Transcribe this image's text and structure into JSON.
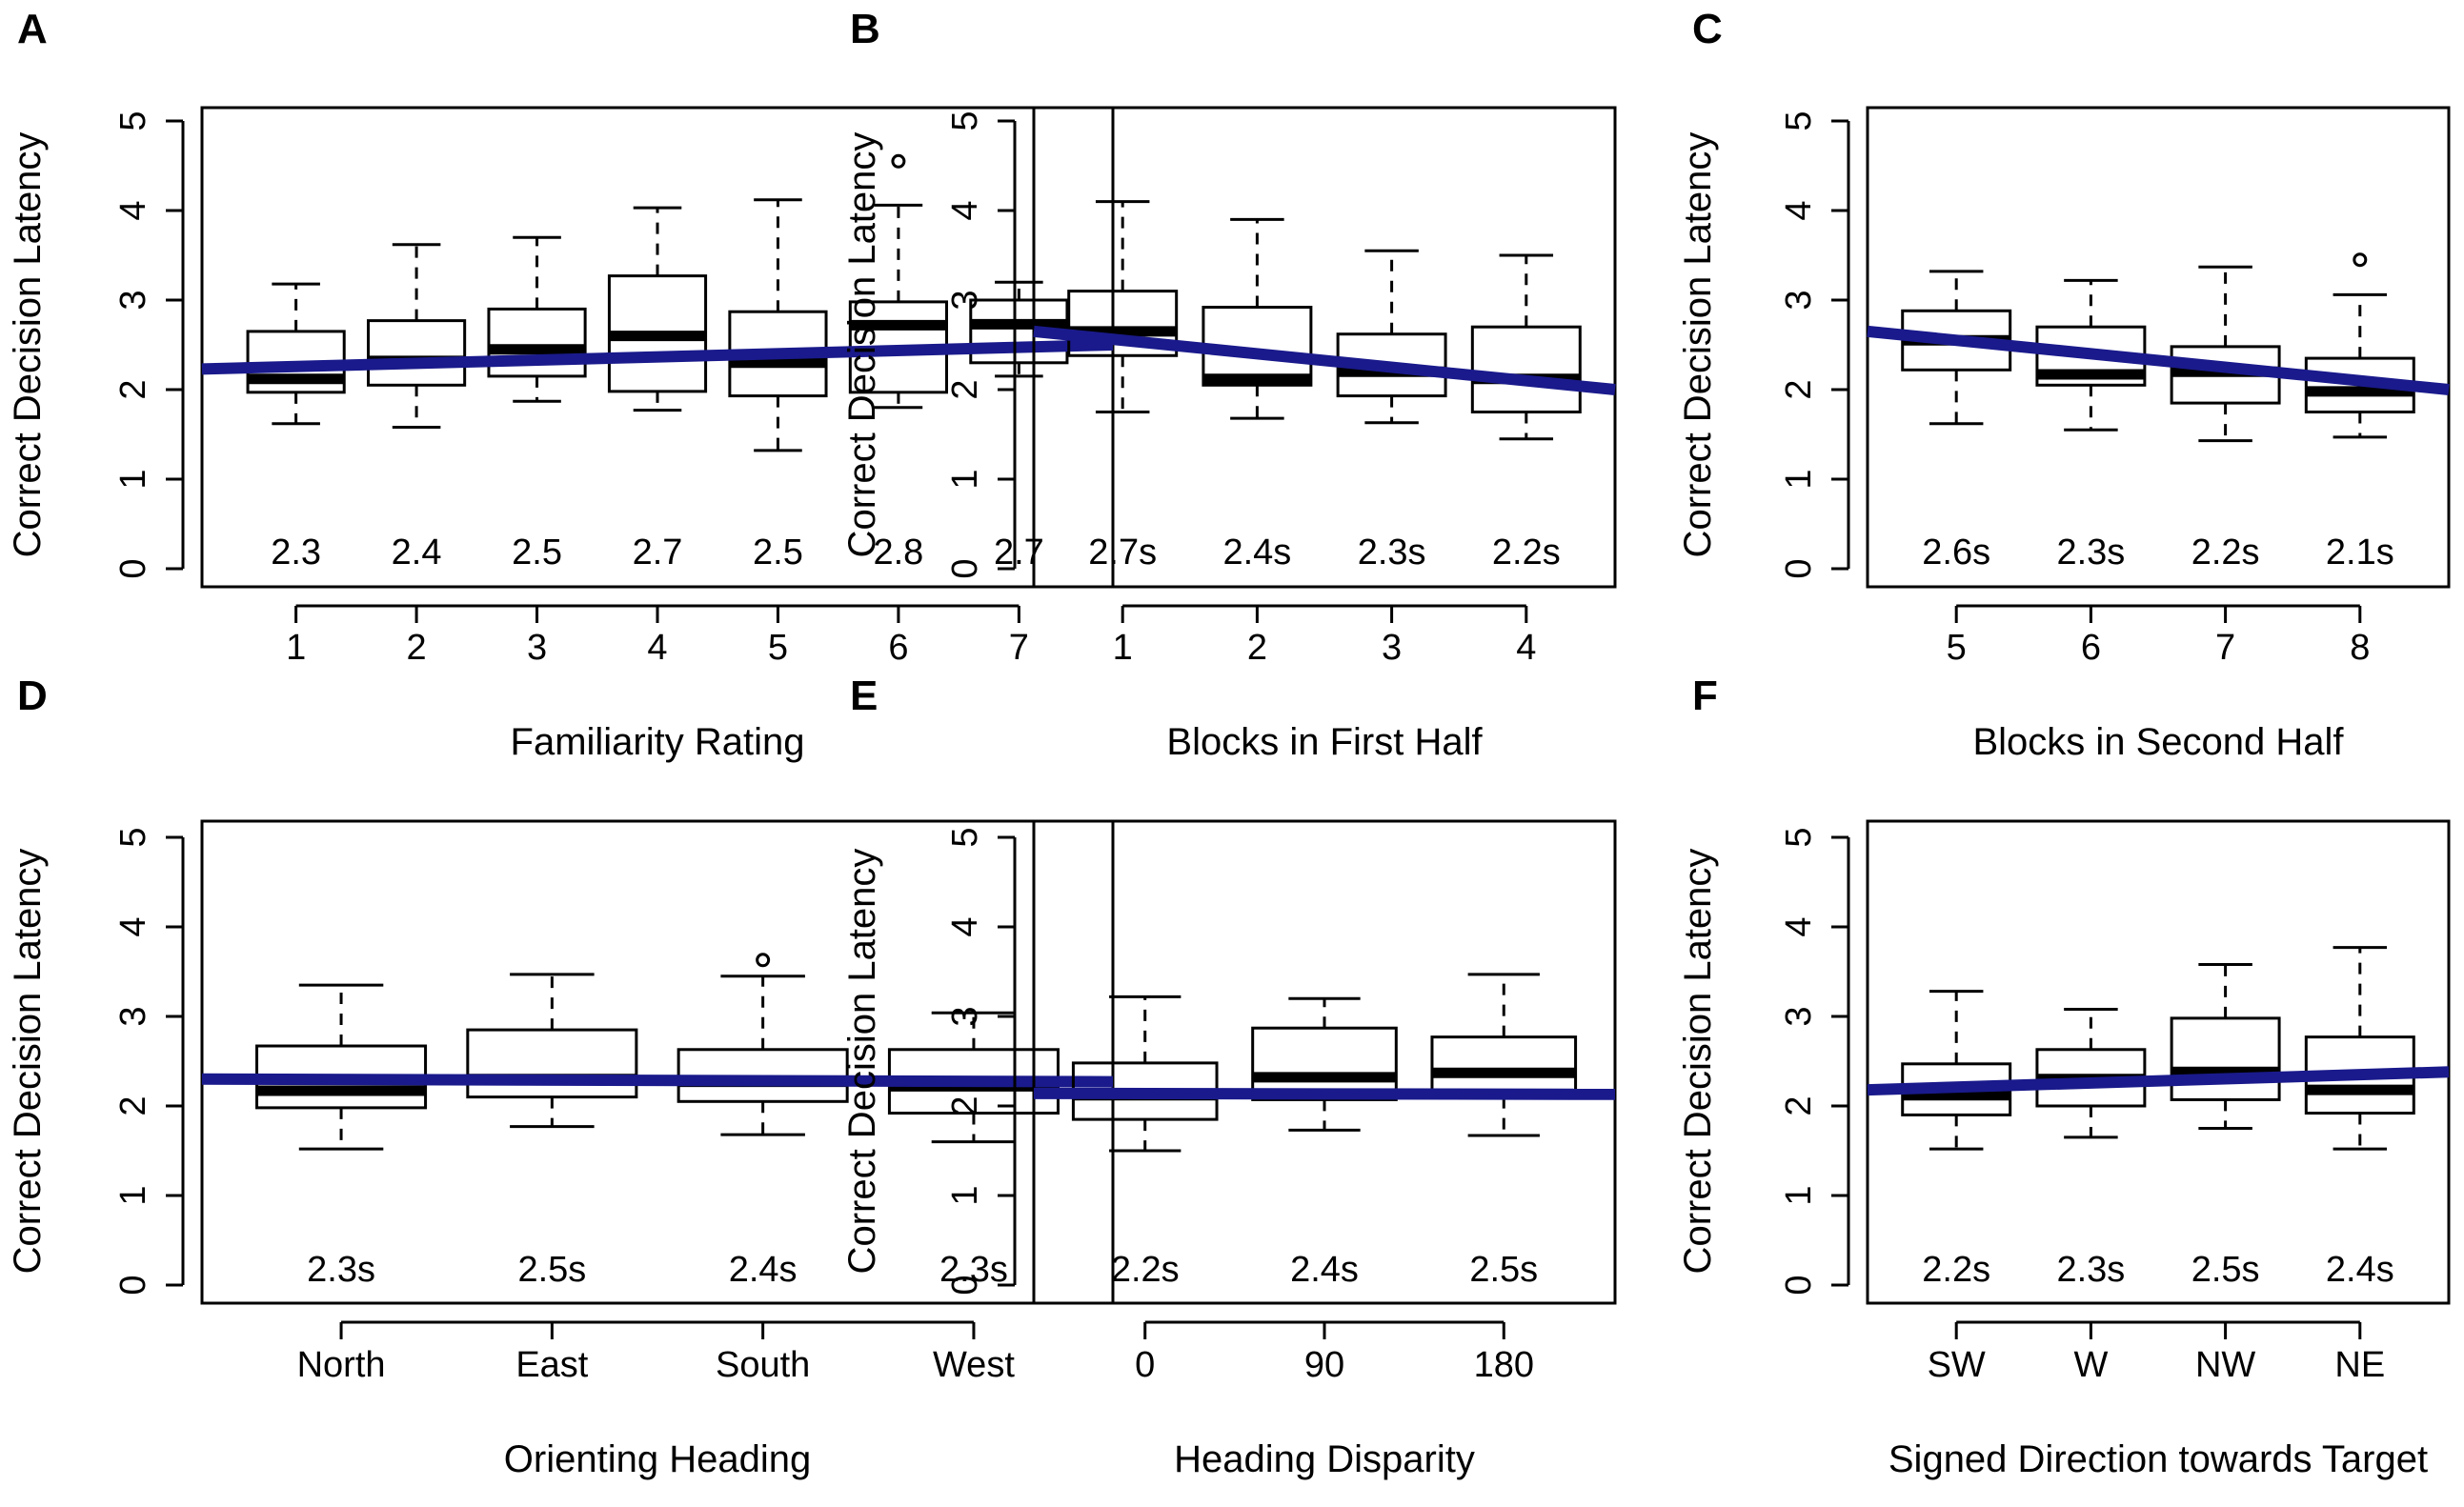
{
  "chart_data": [
    {
      "panel": "A",
      "type": "box",
      "xlabel": "Familiarity Rating",
      "ylabel": "Correct Decision Latency",
      "ylim": [
        0,
        5
      ],
      "yticks": [
        "0",
        "1",
        "2",
        "3",
        "4",
        "5"
      ],
      "categories": [
        "1",
        "2",
        "3",
        "4",
        "5",
        "6",
        "7"
      ],
      "value_labels": [
        "2.3",
        "2.4",
        "2.5",
        "2.7",
        "2.5",
        "2.8",
        "2.7"
      ],
      "boxes": [
        {
          "lo": 1.62,
          "q1": 1.97,
          "med": 2.12,
          "q3": 2.65,
          "hi": 3.18,
          "out": []
        },
        {
          "lo": 1.58,
          "q1": 2.05,
          "med": 2.32,
          "q3": 2.77,
          "hi": 3.62,
          "out": []
        },
        {
          "lo": 1.87,
          "q1": 2.15,
          "med": 2.45,
          "q3": 2.9,
          "hi": 3.7,
          "out": []
        },
        {
          "lo": 1.77,
          "q1": 1.98,
          "med": 2.6,
          "q3": 3.27,
          "hi": 4.03,
          "out": []
        },
        {
          "lo": 1.32,
          "q1": 1.93,
          "med": 2.3,
          "q3": 2.87,
          "hi": 4.12,
          "out": []
        },
        {
          "lo": 1.8,
          "q1": 1.97,
          "med": 2.72,
          "q3": 2.98,
          "hi": 4.06,
          "out": [
            4.55
          ]
        },
        {
          "lo": 2.15,
          "q1": 2.3,
          "med": 2.73,
          "q3": 3.0,
          "hi": 3.2,
          "out": []
        }
      ],
      "trend": {
        "start": 2.23,
        "end": 2.5
      }
    },
    {
      "panel": "B",
      "type": "box",
      "xlabel": "Blocks in First Half",
      "ylabel": "Correct Decision Latency",
      "ylim": [
        0,
        5
      ],
      "yticks": [
        "0",
        "1",
        "2",
        "3",
        "4",
        "5"
      ],
      "categories": [
        "1",
        "2",
        "3",
        "4"
      ],
      "value_labels": [
        "2.7s",
        "2.4s",
        "2.3s",
        "2.2s"
      ],
      "boxes": [
        {
          "lo": 1.75,
          "q1": 2.38,
          "med": 2.65,
          "q3": 3.1,
          "hi": 4.1,
          "out": []
        },
        {
          "lo": 1.68,
          "q1": 2.05,
          "med": 2.12,
          "q3": 2.92,
          "hi": 3.9,
          "out": []
        },
        {
          "lo": 1.63,
          "q1": 1.93,
          "med": 2.2,
          "q3": 2.62,
          "hi": 3.55,
          "out": []
        },
        {
          "lo": 1.45,
          "q1": 1.75,
          "med": 2.12,
          "q3": 2.7,
          "hi": 3.5,
          "out": []
        }
      ],
      "trend": {
        "start": 2.65,
        "end": 2.0
      }
    },
    {
      "panel": "C",
      "type": "box",
      "xlabel": "Blocks in Second Half",
      "ylabel": "Correct Decision Latency",
      "ylim": [
        0,
        5
      ],
      "yticks": [
        "0",
        "1",
        "2",
        "3",
        "4",
        "5"
      ],
      "categories": [
        "5",
        "6",
        "7",
        "8"
      ],
      "value_labels": [
        "2.6s",
        "2.3s",
        "2.2s",
        "2.1s"
      ],
      "boxes": [
        {
          "lo": 1.62,
          "q1": 2.22,
          "med": 2.55,
          "q3": 2.88,
          "hi": 3.32,
          "out": []
        },
        {
          "lo": 1.55,
          "q1": 2.05,
          "med": 2.17,
          "q3": 2.7,
          "hi": 3.22,
          "out": []
        },
        {
          "lo": 1.43,
          "q1": 1.85,
          "med": 2.2,
          "q3": 2.48,
          "hi": 3.37,
          "out": []
        },
        {
          "lo": 1.47,
          "q1": 1.75,
          "med": 1.98,
          "q3": 2.35,
          "hi": 3.06,
          "out": [
            3.45
          ]
        }
      ],
      "trend": {
        "start": 2.65,
        "end": 2.0
      }
    },
    {
      "panel": "D",
      "type": "box",
      "xlabel": "Orienting Heading",
      "ylabel": "Correct Decision Latency",
      "ylim": [
        0,
        5
      ],
      "yticks": [
        "0",
        "1",
        "2",
        "3",
        "4",
        "5"
      ],
      "categories": [
        "North",
        "East",
        "South",
        "West"
      ],
      "value_labels": [
        "2.3s",
        "2.5s",
        "2.4s",
        "2.3s"
      ],
      "boxes": [
        {
          "lo": 1.52,
          "q1": 1.98,
          "med": 2.17,
          "q3": 2.67,
          "hi": 3.35,
          "out": []
        },
        {
          "lo": 1.77,
          "q1": 2.1,
          "med": 2.3,
          "q3": 2.85,
          "hi": 3.47,
          "out": []
        },
        {
          "lo": 1.68,
          "q1": 2.05,
          "med": 2.27,
          "q3": 2.63,
          "hi": 3.45,
          "out": [
            3.63
          ]
        },
        {
          "lo": 1.6,
          "q1": 1.92,
          "med": 2.22,
          "q3": 2.63,
          "hi": 3.04,
          "out": []
        }
      ],
      "trend": {
        "start": 2.3,
        "end": 2.27
      }
    },
    {
      "panel": "E",
      "type": "box",
      "xlabel": "Heading Disparity",
      "ylabel": "Correct Decision Latency",
      "ylim": [
        0,
        5
      ],
      "yticks": [
        "0",
        "1",
        "2",
        "3",
        "4",
        "5"
      ],
      "categories": [
        "0",
        "90",
        "180"
      ],
      "value_labels": [
        "2.2s",
        "2.4s",
        "2.5s"
      ],
      "boxes": [
        {
          "lo": 1.5,
          "q1": 1.85,
          "med": 2.12,
          "q3": 2.48,
          "hi": 3.22,
          "out": []
        },
        {
          "lo": 1.73,
          "q1": 2.07,
          "med": 2.32,
          "q3": 2.87,
          "hi": 3.2,
          "out": []
        },
        {
          "lo": 1.67,
          "q1": 2.1,
          "med": 2.37,
          "q3": 2.77,
          "hi": 3.47,
          "out": []
        }
      ],
      "trend": {
        "start": 2.14,
        "end": 2.13
      }
    },
    {
      "panel": "F",
      "type": "box",
      "xlabel": "Signed Direction towards Target",
      "ylabel": "Correct Decision Latency",
      "ylim": [
        0,
        5
      ],
      "yticks": [
        "0",
        "1",
        "2",
        "3",
        "4",
        "5"
      ],
      "categories": [
        "SW",
        "W",
        "NW",
        "NE"
      ],
      "value_labels": [
        "2.2s",
        "2.3s",
        "2.5s",
        "2.4s"
      ],
      "boxes": [
        {
          "lo": 1.52,
          "q1": 1.9,
          "med": 2.12,
          "q3": 2.47,
          "hi": 3.28,
          "out": []
        },
        {
          "lo": 1.65,
          "q1": 2.0,
          "med": 2.3,
          "q3": 2.63,
          "hi": 3.08,
          "out": []
        },
        {
          "lo": 1.75,
          "q1": 2.07,
          "med": 2.38,
          "q3": 2.98,
          "hi": 3.58,
          "out": []
        },
        {
          "lo": 1.52,
          "q1": 1.92,
          "med": 2.18,
          "q3": 2.77,
          "hi": 3.77,
          "out": []
        }
      ],
      "trend": {
        "start": 2.18,
        "end": 2.38
      }
    }
  ],
  "colors": {
    "trend": "#1a1a8c",
    "ink": "#000000",
    "background": "#ffffff"
  }
}
